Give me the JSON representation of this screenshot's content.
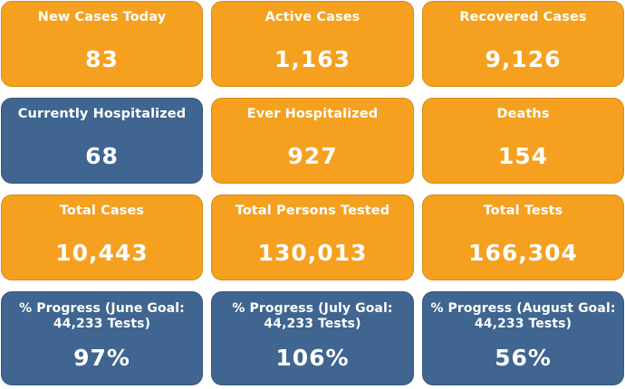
{
  "tiles": [
    {
      "label": "New Cases Today",
      "value": "83"
    },
    {
      "label": "Active Cases",
      "value": "1,163"
    },
    {
      "label": "Recovered Cases",
      "value": "9,126"
    },
    {
      "label": "Currently Hospitalized",
      "value": "68"
    },
    {
      "label": "Ever Hospitalized",
      "value": "927"
    },
    {
      "label": "Deaths",
      "value": "154"
    },
    {
      "label": "Total Cases",
      "value": "10,443"
    },
    {
      "label": "Total Persons Tested",
      "value": "130,013"
    },
    {
      "label": "Total Tests",
      "value": "166,304"
    },
    {
      "label": "% Progress (June Goal: 44,233 Tests)",
      "value": "97%"
    },
    {
      "label": "% Progress (July Goal: 44,233 Tests)",
      "value": "106%"
    },
    {
      "label": "% Progress (August Goal: 44,233 Tests)",
      "value": "56%"
    }
  ],
  "colors": {
    "orange": "#f5a01f",
    "blue": "#3f6590",
    "text": "#ffffff"
  }
}
